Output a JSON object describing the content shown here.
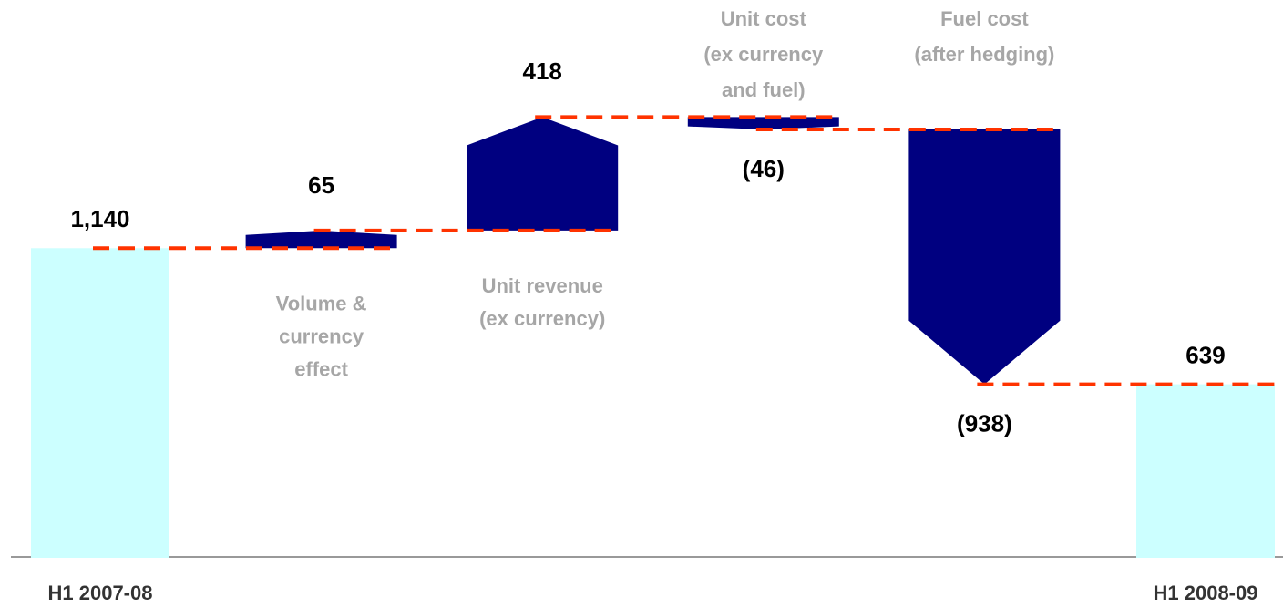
{
  "chart_data": {
    "type": "waterfall",
    "categories": [
      "H1 2007-08",
      "Volume &\ncurrency\neffect",
      "Unit revenue\n(ex currency)",
      "Unit cost\n(ex currency\nand fuel)",
      "Fuel cost\n(after hedging)",
      "H1 2008-09"
    ],
    "values": [
      1140,
      65,
      418,
      -46,
      -938,
      639
    ],
    "value_labels": [
      "1,140",
      "65",
      "418",
      "(46)",
      "(938)",
      "639"
    ],
    "kinds": [
      "total",
      "delta",
      "delta",
      "delta",
      "delta",
      "total"
    ],
    "total_color": "#ccffff",
    "delta_color": "#000080",
    "connector_color": "#ff3300",
    "ylim": [
      0,
      2000
    ]
  }
}
